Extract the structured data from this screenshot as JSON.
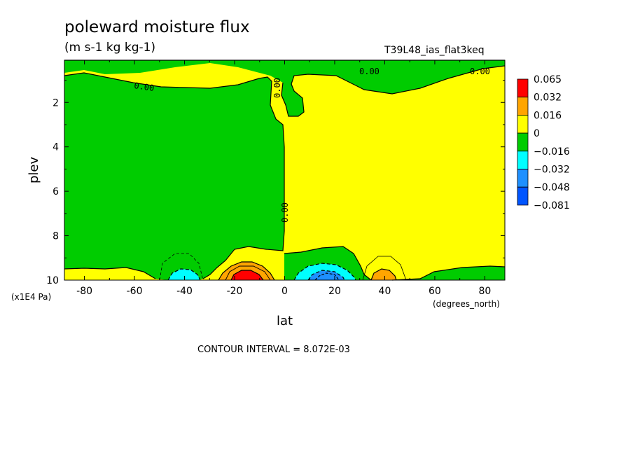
{
  "title": "poleward moisture flux",
  "units": "(m s-1 kg kg-1)",
  "run_label": "T39L48_ias_flat3keq",
  "contour_interval": "CONTOUR INTERVAL = 8.072E-03",
  "contour_label": "0.00",
  "colors": {
    "red": "#ff0000",
    "orange": "#ffa500",
    "yellow": "#ffff00",
    "green": "#00cc00",
    "cyan": "#00ffff",
    "light_blue": "#1e90ff",
    "blue": "#0055ff"
  },
  "chart_data": {
    "type": "heatmap",
    "title": "poleward moisture flux",
    "subtitle": "(m s-1 kg kg-1)",
    "xlabel": "lat",
    "xunit": "(degrees_north)",
    "ylabel": "plev",
    "yunit": "(x1E4 Pa)",
    "xlim": [
      -88,
      88
    ],
    "ylim": [
      10,
      0.1
    ],
    "xticks": [
      -80,
      -60,
      -40,
      -20,
      0,
      20,
      40,
      60,
      80
    ],
    "xtick_labels": [
      "-80",
      "-60",
      "-40",
      "-20",
      "0",
      "20",
      "40",
      "60",
      "80"
    ],
    "yticks": [
      2,
      4,
      6,
      8,
      10
    ],
    "ytick_labels": [
      "2",
      "4",
      "6",
      "8",
      "10"
    ],
    "colorbar": {
      "labels": [
        "0.065",
        "0.032",
        "0.016",
        "0",
        "−0.016",
        "−0.032",
        "−0.048",
        "−0.081"
      ],
      "colors": [
        "#ff0000",
        "#ffa500",
        "#ffff00",
        "#00cc00",
        "#00ffff",
        "#1e90ff",
        "#0055ff"
      ]
    },
    "contour_labels": [
      {
        "lat": -63,
        "plev": 0.9,
        "text": "0.00"
      },
      {
        "lat": 0,
        "plev": 1.2,
        "text": "0.00"
      },
      {
        "lat": 34,
        "plev": 0.5,
        "text": "0.00"
      },
      {
        "lat": 80,
        "plev": 0.5,
        "text": "0.00"
      },
      {
        "lat": 0,
        "plev": 7.1,
        "text": "0.00"
      }
    ],
    "contour_interval": 0.008072
  }
}
